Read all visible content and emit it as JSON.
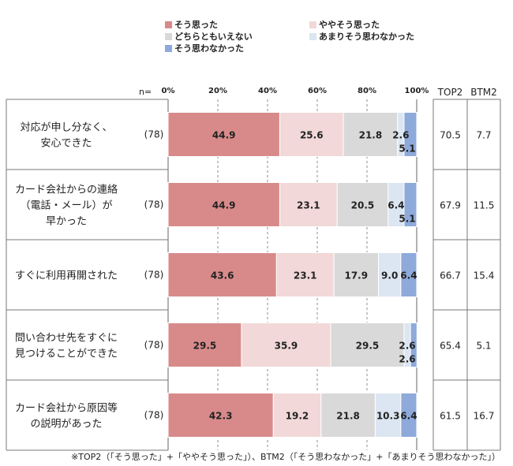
{
  "chart_data": {
    "type": "bar",
    "stacked": true,
    "orientation": "horizontal",
    "legend": [
      {
        "name": "そう思った",
        "color": "#d88a8a"
      },
      {
        "name": "ややそう思った",
        "color": "#f2d8d8"
      },
      {
        "name": "どちらともいえない",
        "color": "#d9d9d9"
      },
      {
        "name": "あまりそう思わなかった",
        "color": "#dce6f2"
      },
      {
        "name": "そう思わなかった",
        "color": "#8eaadb"
      }
    ],
    "legend_position": "top",
    "n_label": "n=",
    "x_ticks": [
      "0%",
      "20%",
      "40%",
      "60%",
      "80%",
      "100%"
    ],
    "xlim": [
      0,
      100
    ],
    "col_headers": {
      "top2": "TOP2",
      "btm2": "BTM2"
    },
    "categories": [
      {
        "label_lines": [
          "対応が申し分なく、",
          "安心できた"
        ],
        "n": "(78)",
        "values": [
          44.9,
          25.6,
          21.8,
          2.6,
          5.1
        ],
        "labels": [
          "44.9",
          "25.6",
          "21.8",
          "2.6",
          "5.1"
        ],
        "top2": "70.5",
        "btm2": "7.7"
      },
      {
        "label_lines": [
          "カード会社からの連絡",
          "（電話・メール）が",
          "早かった"
        ],
        "n": "(78)",
        "values": [
          44.9,
          23.1,
          20.5,
          6.4,
          5.1
        ],
        "labels": [
          "44.9",
          "23.1",
          "20.5",
          "6.4",
          "5.1"
        ],
        "top2": "67.9",
        "btm2": "11.5"
      },
      {
        "label_lines": [
          "すぐに利用再開された"
        ],
        "n": "(78)",
        "values": [
          43.6,
          23.1,
          17.9,
          9.0,
          6.4
        ],
        "labels": [
          "43.6",
          "23.1",
          "17.9",
          "9.0",
          "6.4"
        ],
        "top2": "66.7",
        "btm2": "15.4"
      },
      {
        "label_lines": [
          "問い合わせ先をすぐに",
          "見つけることができた"
        ],
        "n": "(78)",
        "values": [
          29.5,
          35.9,
          29.5,
          2.6,
          2.6
        ],
        "labels": [
          "29.5",
          "35.9",
          "29.5",
          "2.6",
          "2.6"
        ],
        "top2": "65.4",
        "btm2": "5.1"
      },
      {
        "label_lines": [
          "カード会社から原因等",
          "の説明があった"
        ],
        "n": "(78)",
        "values": [
          42.3,
          19.2,
          21.8,
          10.3,
          6.4
        ],
        "labels": [
          "42.3",
          "19.2",
          "21.8",
          "10.3",
          "6.4"
        ],
        "top2": "61.5",
        "btm2": "16.7"
      }
    ],
    "footnote": "※TOP2（「そう思った」+「ややそう思った」）、BTM2（「そう思わなかった」+「あまりそう思わなかった」）"
  }
}
